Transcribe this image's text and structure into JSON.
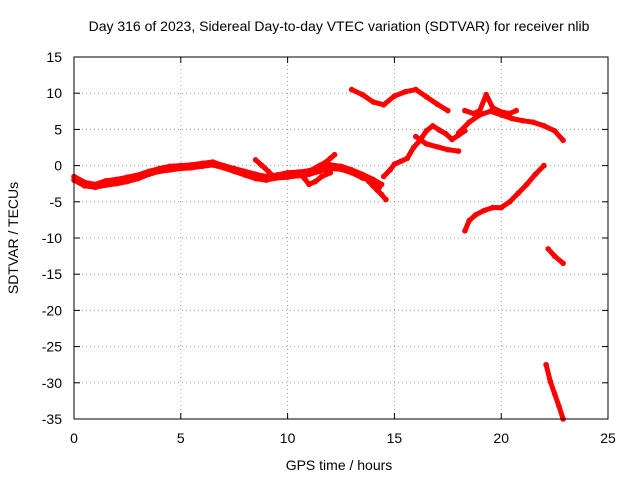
{
  "chart_data": {
    "type": "scatter",
    "title": "Day 316 of 2023, Sidereal Day-to-day VTEC variation (SDTVAR) for receiver nlib",
    "xlabel": "GPS time / hours",
    "ylabel": "SDTVAR / TECUs",
    "xlim": [
      0,
      25
    ],
    "ylim": [
      -35,
      15
    ],
    "x_ticks": [
      0,
      5,
      10,
      15,
      20,
      25
    ],
    "y_ticks": [
      15,
      10,
      5,
      0,
      -5,
      -10,
      -15,
      -20,
      -25,
      -30,
      -35
    ],
    "x_tick_labels": [
      "0",
      "5",
      "10",
      "15",
      "20",
      "25"
    ],
    "y_tick_labels": [
      "15",
      "10",
      "5",
      "0",
      "-5",
      "-10",
      "-15",
      "-20",
      "-25",
      "-30",
      "-35"
    ],
    "grid": true,
    "series_color": "#ff0000",
    "series": [
      {
        "name": "main-trace",
        "x": [
          0.0,
          0.5,
          1.0,
          1.5,
          2.0,
          2.5,
          3.0,
          3.5,
          4.0,
          4.5,
          5.0,
          5.5,
          6.0,
          6.5,
          7.0,
          7.5,
          8.0,
          8.5,
          9.0,
          9.5,
          10.0,
          10.5,
          11.0,
          11.5,
          12.0,
          12.5,
          13.0,
          13.5,
          14.0,
          14.3
        ],
        "y": [
          -2.0,
          -2.8,
          -3.0,
          -2.7,
          -2.5,
          -2.2,
          -1.8,
          -1.2,
          -0.8,
          -0.6,
          -0.4,
          -0.3,
          -0.1,
          0.1,
          -0.3,
          -0.8,
          -1.3,
          -1.8,
          -2.0,
          -1.7,
          -1.6,
          -1.4,
          -1.2,
          -0.8,
          -0.4,
          -0.5,
          -1.0,
          -1.7,
          -2.2,
          -3.0
        ]
      },
      {
        "name": "main-trace-offset",
        "x": [
          0.0,
          0.5,
          1.0,
          1.5,
          2.0,
          2.5,
          3.0,
          3.5,
          4.0,
          4.5,
          5.0,
          5.5,
          6.0,
          6.5,
          7.0,
          7.5,
          8.0,
          8.5,
          9.0,
          9.5,
          10.0,
          10.5,
          11.0,
          11.5,
          12.0,
          12.5,
          13.0,
          13.5,
          14.0,
          14.4
        ],
        "y": [
          -1.5,
          -2.3,
          -2.6,
          -2.1,
          -1.9,
          -1.6,
          -1.3,
          -0.8,
          -0.4,
          -0.1,
          0.0,
          0.1,
          0.3,
          0.5,
          0.0,
          -0.4,
          -0.8,
          -1.2,
          -1.5,
          -1.3,
          -1.0,
          -0.9,
          -0.7,
          -0.3,
          0.1,
          -0.1,
          -0.6,
          -1.2,
          -1.9,
          -2.6
        ]
      },
      {
        "name": "spike-8-9",
        "x": [
          8.5,
          8.8,
          9.1,
          9.3
        ],
        "y": [
          0.8,
          0.0,
          -0.8,
          -1.4
        ]
      },
      {
        "name": "drop-10-11",
        "x": [
          10.5,
          10.8,
          11.0,
          11.3,
          11.6,
          12.0
        ],
        "y": [
          -1.0,
          -1.8,
          -2.6,
          -2.2,
          -1.5,
          -1.0
        ]
      },
      {
        "name": "rise-11-12",
        "x": [
          11.2,
          11.5,
          11.8,
          12.0,
          12.2
        ],
        "y": [
          -0.5,
          0.0,
          0.5,
          1.0,
          1.5
        ]
      },
      {
        "name": "drop-14",
        "x": [
          13.8,
          14.0,
          14.2,
          14.4,
          14.6
        ],
        "y": [
          -2.2,
          -2.8,
          -3.4,
          -4.0,
          -4.7
        ]
      },
      {
        "name": "upper-arc-13-17",
        "x": [
          13.0,
          13.5,
          14.0,
          14.5,
          15.0,
          15.5,
          16.0,
          16.5,
          17.0,
          17.5
        ],
        "y": [
          10.5,
          9.8,
          8.8,
          8.4,
          9.6,
          10.2,
          10.5,
          9.5,
          8.5,
          7.6
        ]
      },
      {
        "name": "rise-14-18",
        "x": [
          14.5,
          14.8,
          15.0,
          15.3,
          15.6,
          15.9,
          16.2,
          16.5,
          16.8,
          17.1,
          17.4,
          17.7,
          18.0,
          18.3
        ],
        "y": [
          -1.5,
          -0.6,
          0.2,
          0.6,
          1.0,
          2.5,
          3.5,
          4.8,
          5.5,
          4.9,
          4.4,
          3.6,
          4.2,
          4.8
        ]
      },
      {
        "name": "cross-16-18",
        "x": [
          16.0,
          16.5,
          17.0,
          17.5,
          18.0
        ],
        "y": [
          4.0,
          3.0,
          2.6,
          2.2,
          2.0
        ]
      },
      {
        "name": "upper-band-18-23",
        "x": [
          18.0,
          18.5,
          19.0,
          19.5,
          20.0,
          20.5,
          21.0,
          21.5,
          22.0,
          22.5,
          22.9
        ],
        "y": [
          4.5,
          6.0,
          7.0,
          7.5,
          7.0,
          6.5,
          6.2,
          6.0,
          5.5,
          4.8,
          3.5
        ]
      },
      {
        "name": "upper-band-19-20",
        "x": [
          18.3,
          18.7,
          19.0,
          19.3,
          19.6,
          20.0,
          20.4,
          20.7
        ],
        "y": [
          7.6,
          7.2,
          7.6,
          9.8,
          8.0,
          7.4,
          7.2,
          7.6
        ]
      },
      {
        "name": "lower-arc-18-22",
        "x": [
          18.3,
          18.5,
          18.8,
          19.2,
          19.6,
          20.0,
          20.4,
          20.8,
          21.2,
          21.6,
          22.0
        ],
        "y": [
          -9.0,
          -7.6,
          -6.8,
          -6.2,
          -5.8,
          -5.8,
          -5.0,
          -3.8,
          -2.6,
          -1.2,
          0.0
        ]
      },
      {
        "name": "segment-22-13",
        "x": [
          22.2,
          22.5,
          22.9
        ],
        "y": [
          -11.5,
          -12.5,
          -13.5
        ]
      },
      {
        "name": "segment-22-30",
        "x": [
          22.1,
          22.3,
          22.5,
          22.7,
          22.9
        ],
        "y": [
          -27.5,
          -29.8,
          -31.5,
          -33.2,
          -35.0
        ]
      }
    ]
  }
}
